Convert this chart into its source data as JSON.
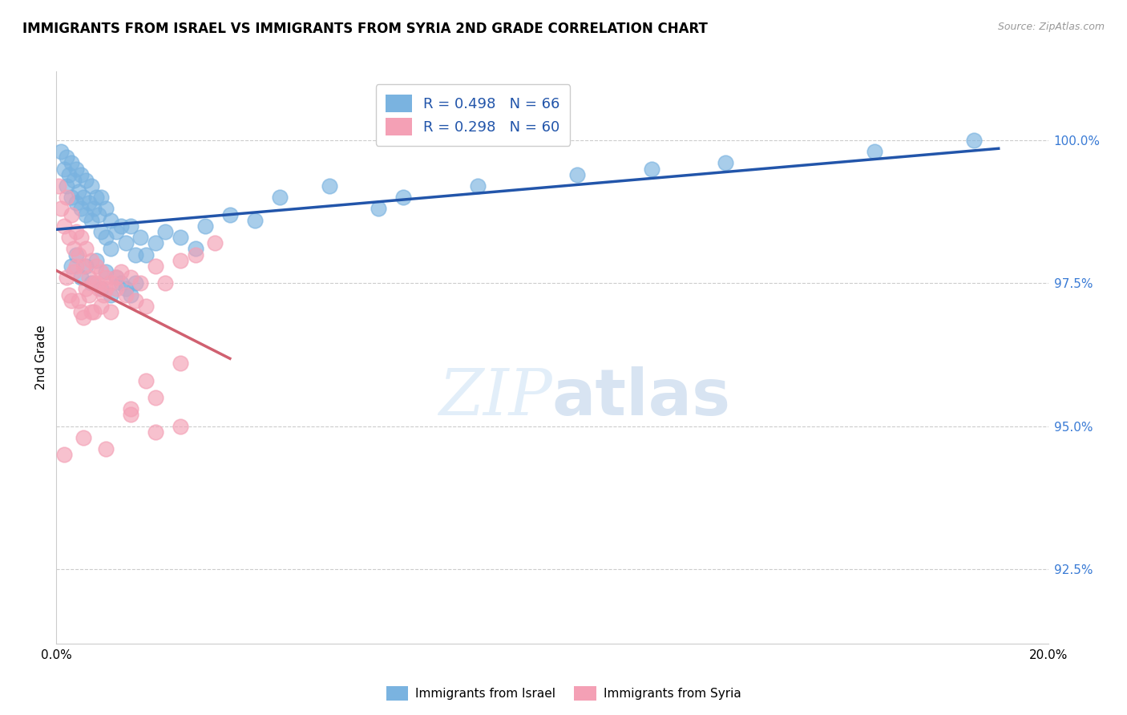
{
  "title": "IMMIGRANTS FROM ISRAEL VS IMMIGRANTS FROM SYRIA 2ND GRADE CORRELATION CHART",
  "source": "Source: ZipAtlas.com",
  "ylabel": "2nd Grade",
  "ytick_labels": [
    "92.5%",
    "95.0%",
    "97.5%",
    "100.0%"
  ],
  "ytick_values": [
    92.5,
    95.0,
    97.5,
    100.0
  ],
  "xlim": [
    0.0,
    20.0
  ],
  "ylim": [
    91.2,
    101.2
  ],
  "legend_r_israel": "R = 0.498",
  "legend_n_israel": "N = 66",
  "legend_r_syria": "R = 0.298",
  "legend_n_syria": "N = 60",
  "israel_color": "#7ab3e0",
  "syria_color": "#f4a0b5",
  "israel_line_color": "#2255aa",
  "syria_line_color": "#d06070",
  "background_color": "#ffffff",
  "israel_x": [
    0.1,
    0.15,
    0.2,
    0.2,
    0.25,
    0.3,
    0.3,
    0.35,
    0.4,
    0.4,
    0.45,
    0.5,
    0.5,
    0.55,
    0.6,
    0.6,
    0.65,
    0.7,
    0.7,
    0.75,
    0.8,
    0.85,
    0.9,
    0.9,
    1.0,
    1.0,
    1.1,
    1.1,
    1.2,
    1.3,
    1.4,
    1.5,
    1.6,
    1.7,
    1.8,
    2.0,
    2.2,
    2.5,
    2.8,
    3.0,
    3.5,
    4.0,
    4.5,
    5.5,
    6.5,
    7.0,
    8.5,
    10.5,
    12.0,
    13.5,
    16.5,
    18.5,
    0.3,
    0.4,
    0.5,
    0.6,
    0.7,
    0.8,
    0.9,
    1.0,
    1.1,
    1.2,
    1.3,
    1.4,
    1.5,
    1.6
  ],
  "israel_y": [
    99.8,
    99.5,
    99.7,
    99.2,
    99.4,
    99.6,
    99.0,
    99.3,
    99.5,
    98.9,
    99.1,
    99.4,
    98.8,
    99.0,
    99.3,
    98.7,
    98.9,
    99.2,
    98.6,
    98.8,
    99.0,
    98.7,
    99.0,
    98.4,
    98.8,
    98.3,
    98.6,
    98.1,
    98.4,
    98.5,
    98.2,
    98.5,
    98.0,
    98.3,
    98.0,
    98.2,
    98.4,
    98.3,
    98.1,
    98.5,
    98.7,
    98.6,
    99.0,
    99.2,
    98.8,
    99.0,
    99.2,
    99.4,
    99.5,
    99.6,
    99.8,
    100.0,
    97.8,
    98.0,
    97.6,
    97.8,
    97.5,
    97.9,
    97.4,
    97.7,
    97.3,
    97.6,
    97.5,
    97.4,
    97.3,
    97.5
  ],
  "syria_x": [
    0.05,
    0.1,
    0.15,
    0.2,
    0.25,
    0.3,
    0.35,
    0.4,
    0.45,
    0.5,
    0.55,
    0.6,
    0.65,
    0.7,
    0.75,
    0.8,
    0.85,
    0.9,
    0.95,
    1.0,
    1.1,
    1.2,
    1.3,
    1.4,
    1.5,
    1.6,
    1.7,
    1.8,
    2.0,
    2.2,
    2.5,
    2.8,
    3.2,
    0.2,
    0.3,
    0.4,
    0.5,
    0.6,
    0.7,
    0.8,
    0.9,
    1.0,
    1.1,
    1.2,
    0.25,
    0.35,
    0.45,
    0.55,
    0.65,
    0.75,
    1.5,
    2.0,
    1.8,
    2.5,
    0.15,
    0.55,
    1.0,
    1.5,
    2.0,
    2.5
  ],
  "syria_y": [
    99.2,
    98.8,
    98.5,
    99.0,
    98.3,
    98.7,
    98.1,
    98.4,
    98.0,
    98.3,
    97.8,
    98.1,
    97.6,
    97.9,
    97.5,
    97.8,
    97.4,
    97.7,
    97.3,
    97.6,
    97.5,
    97.4,
    97.7,
    97.3,
    97.6,
    97.2,
    97.5,
    97.1,
    97.8,
    97.5,
    97.9,
    98.0,
    98.2,
    97.6,
    97.2,
    97.8,
    97.0,
    97.4,
    97.0,
    97.5,
    97.1,
    97.4,
    97.0,
    97.6,
    97.3,
    97.7,
    97.2,
    96.9,
    97.3,
    97.0,
    95.2,
    95.5,
    95.8,
    96.1,
    94.5,
    94.8,
    94.6,
    95.3,
    94.9,
    95.0
  ]
}
